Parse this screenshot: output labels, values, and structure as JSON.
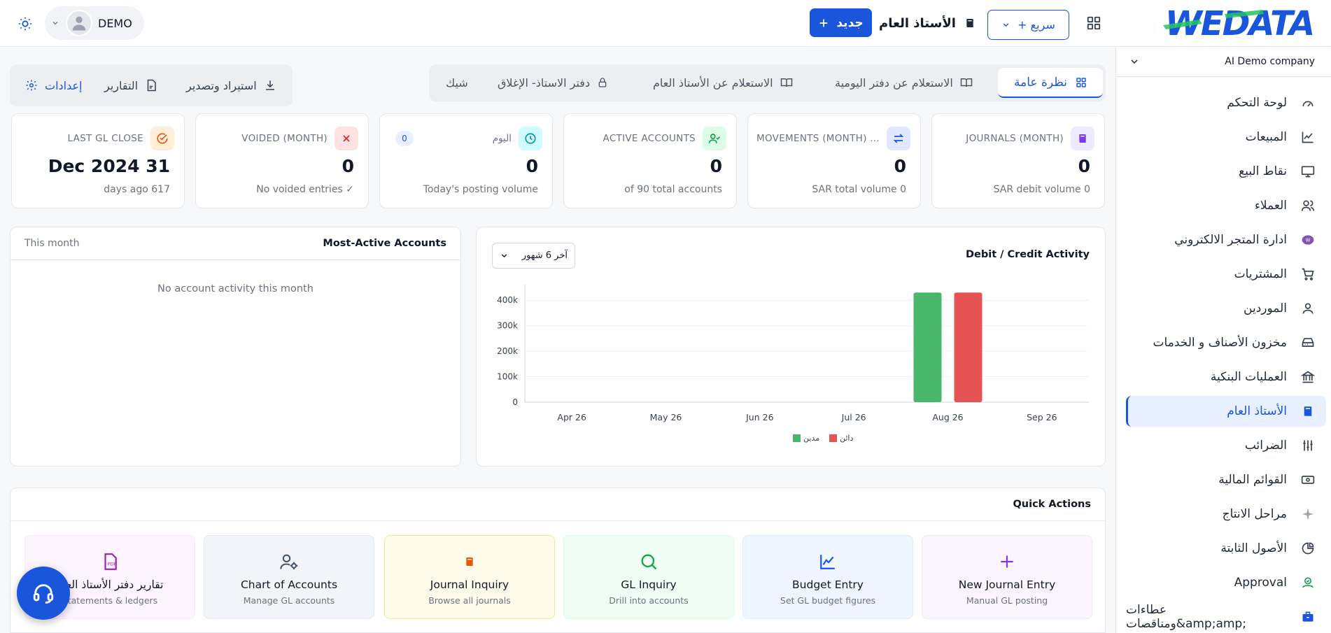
{
  "header": {
    "user_name": "DEMO",
    "new_button": "جديد",
    "module_title": "الأستاذ العام",
    "quick_button": "+ سريع",
    "logo_text": "WEDATA"
  },
  "sidebar": {
    "company": "AI Demo company",
    "items": [
      {
        "label": "لوحة التحكم",
        "icon": "speedometer-icon"
      },
      {
        "label": "المبيعات",
        "icon": "line-chart-icon"
      },
      {
        "label": "نقاط البيع",
        "icon": "monitor-icon"
      },
      {
        "label": "العملاء",
        "icon": "users-icon"
      },
      {
        "label": "ادارة المتجر الالكتروني",
        "icon": "woo-icon"
      },
      {
        "label": "المشتريات",
        "icon": "cart-icon"
      },
      {
        "label": "الموردين",
        "icon": "user-icon"
      },
      {
        "label": "مخزون الأصناف و الخدمات",
        "icon": "storage-icon"
      },
      {
        "label": "العمليات البنكية",
        "icon": "bank-icon"
      },
      {
        "label": "الأستاذ العام",
        "icon": "ledger-book-icon",
        "active": true
      },
      {
        "label": "الضرائب",
        "icon": "sliders-icon"
      },
      {
        "label": "القوائم المالية",
        "icon": "banknote-icon"
      },
      {
        "label": "مراحل الانتاج",
        "icon": "sparkle-icon"
      },
      {
        "label": "الأصول الثابتة",
        "icon": "pie-icon"
      },
      {
        "label": "Approval",
        "icon": "approval-icon"
      },
      {
        "label": "عطاءات ومناقصات&amp;amp;",
        "icon": "briefcase-icon"
      }
    ]
  },
  "tabs_left": {
    "settings": "إعدادات",
    "reports": "التقارير",
    "import_export": "استيراد وتصدير"
  },
  "tabs_right": {
    "overview": "نظرة عامة",
    "journal_inquiry": "الاستعلام عن دفتر اليومية",
    "gl_inquiry": "الاستعلام عن الأستاذ العام",
    "ledger_close": "دفتر الاستاذ- الإغلاق",
    "cheque": "شيك"
  },
  "stats": [
    {
      "label": "JOURNALS (MONTH)",
      "value": "0",
      "sub": "SAR debit volume 0",
      "color": "#7c3aed",
      "bg": "#ede9fe",
      "icon": "book-icon"
    },
    {
      "label": "MOVEMENTS (MONTH) ...",
      "value": "0",
      "sub": "SAR total volume 0",
      "color": "#1a56db",
      "bg": "#e0e7ff",
      "icon": "swap-icon"
    },
    {
      "label": "ACTIVE ACCOUNTS",
      "value": "0",
      "sub": "of 90 total accounts",
      "color": "#16a34a",
      "bg": "#dcfce7",
      "icon": "user-check-icon"
    },
    {
      "label": "اليوم",
      "value": "0",
      "sub": "Today's posting volume",
      "color": "#0891b2",
      "bg": "#cffafe",
      "icon": "clock-icon",
      "badge": "0"
    },
    {
      "label": "VOIDED (MONTH)",
      "value": "0",
      "sub": "No voided entries ✓",
      "color": "#dc2626",
      "bg": "#fee2e2",
      "icon": "x-icon"
    },
    {
      "label": "LAST GL CLOSE",
      "value": "Dec 2024 31",
      "sub": "days ago 617",
      "color": "#ea580c",
      "bg": "#ffedd5",
      "icon": "check-circle-icon"
    }
  ],
  "most_active": {
    "title": "Most-Active Accounts",
    "period": "This month",
    "empty": "No account activity this month"
  },
  "chart": {
    "title": "Debit / Credit Activity",
    "range": "آخر 6 شهور"
  },
  "chart_data": {
    "type": "bar",
    "categories": [
      "Apr 26",
      "May 26",
      "Jun 26",
      "Jul 26",
      "Aug 26",
      "Sep 26"
    ],
    "series": [
      {
        "name": "مدين",
        "values": [
          0,
          0,
          0,
          0,
          430000,
          0
        ],
        "color": "#48b76b"
      },
      {
        "name": "دائن",
        "values": [
          0,
          0,
          0,
          0,
          430000,
          0
        ],
        "color": "#e55353"
      }
    ],
    "yticks": [
      "0",
      "100k",
      "200k",
      "300k",
      "400k"
    ],
    "ylim": [
      0,
      450000
    ],
    "grid": true,
    "legend": "bottom"
  },
  "quick_actions": {
    "title": "Quick Actions",
    "items": [
      {
        "title": "New Journal Entry",
        "sub": "Manual GL posting",
        "color": "#7c3aed",
        "bg": "#faf5ff",
        "border": "#ede9fe",
        "icon": "plus-icon"
      },
      {
        "title": "Budget Entry",
        "sub": "Set GL budget figures",
        "color": "#1a56db",
        "bg": "#eff6ff",
        "border": "#dbeafe",
        "icon": "chart-line-icon"
      },
      {
        "title": "GL Inquiry",
        "sub": "Drill into accounts",
        "color": "#16a34a",
        "bg": "#f0fdf4",
        "border": "#dcfce7",
        "icon": "search-icon"
      },
      {
        "title": "Journal Inquiry",
        "sub": "Browse all journals",
        "color": "#ea580c",
        "bg": "#fffbeb",
        "border": "#fde68a",
        "icon": "book-icon"
      },
      {
        "title": "Chart of Accounts",
        "sub": "Manage GL accounts",
        "color": "#475569",
        "bg": "#f1f5f9",
        "border": "#e2e8f0",
        "icon": "user-gear-icon"
      },
      {
        "title": "تقارير دفتر الأستاذ العام",
        "sub": "Statements & ledgers",
        "color": "#a21caf",
        "bg": "#fdf4ff",
        "border": "#fae8ff",
        "icon": "pdf-icon"
      }
    ]
  }
}
